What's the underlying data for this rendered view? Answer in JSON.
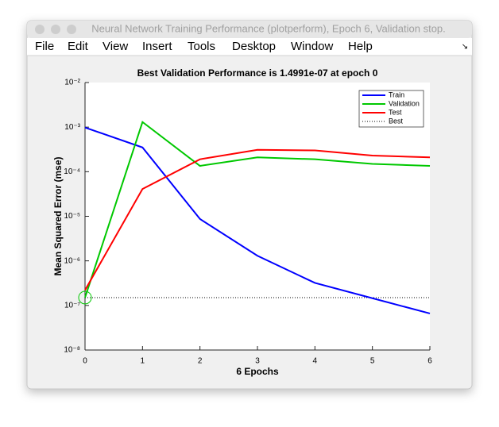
{
  "window": {
    "title": "Neural Network Training Performance (plotperform), Epoch 6, Validation stop.",
    "menu": [
      "File",
      "Edit",
      "View",
      "Insert",
      "Tools",
      "Desktop",
      "Window",
      "Help"
    ]
  },
  "chart_data": {
    "type": "line",
    "title": "Best Validation Performance is 1.4991e-07 at epoch 0",
    "x_label": "6 Epochs",
    "y_label": "Mean Squared Error  (mse)",
    "x": [
      0,
      1,
      2,
      3,
      4,
      5,
      6
    ],
    "series": [
      {
        "name": "Train",
        "color": "#0000ff",
        "values": [
          0.00098,
          0.00035,
          8.7e-06,
          1.3e-06,
          3.2e-07,
          1.45e-07,
          6.6e-08
        ]
      },
      {
        "name": "Validation",
        "color": "#00c800",
        "values": [
          1.4991e-07,
          0.0013,
          0.000135,
          0.00021,
          0.00019,
          0.00015,
          0.000135
        ]
      },
      {
        "name": "Test",
        "color": "#ff0000",
        "values": [
          2.2e-07,
          4.1e-05,
          0.00019,
          0.00031,
          0.0003,
          0.00023,
          0.00021
        ]
      }
    ],
    "best": {
      "name": "Best",
      "epoch": 0,
      "value": 1.4991e-07,
      "color": "#000000"
    },
    "xlim": [
      0,
      6
    ],
    "xticks": [
      0,
      1,
      2,
      3,
      4,
      5,
      6
    ],
    "ylim": [
      1e-08,
      0.01
    ],
    "log_y": true,
    "yticks": [
      {
        "value": 1e-08,
        "label": "10⁻⁸"
      },
      {
        "value": 1e-07,
        "label": "10⁻⁷"
      },
      {
        "value": 1e-06,
        "label": "10⁻⁶"
      },
      {
        "value": 1e-05,
        "label": "10⁻⁵"
      },
      {
        "value": 0.0001,
        "label": "10⁻⁴"
      },
      {
        "value": 0.001,
        "label": "10⁻³"
      },
      {
        "value": 0.01,
        "label": "10⁻²"
      }
    ],
    "legend": "upper right"
  }
}
